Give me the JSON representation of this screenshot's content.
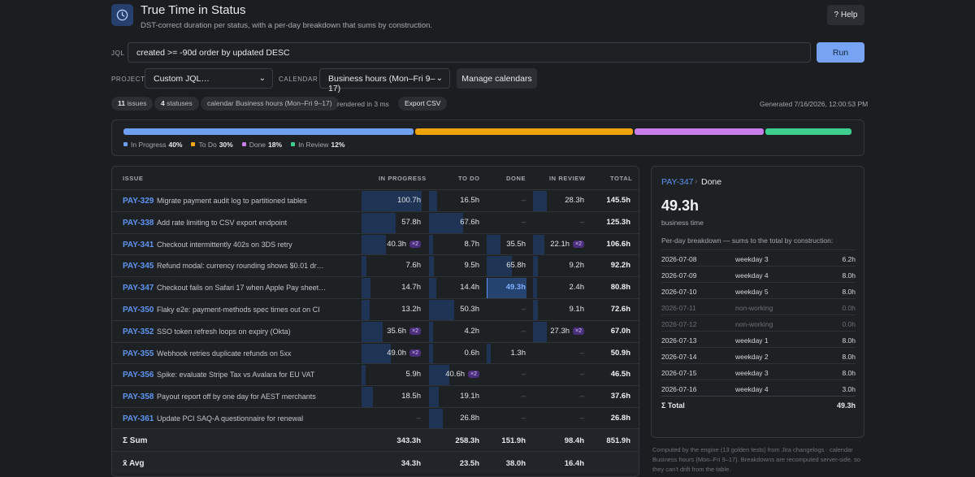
{
  "header": {
    "title": "True Time in Status",
    "subtitle": "DST-correct duration per status, with a per-day breakdown that sums by construction.",
    "help_label": "? Help"
  },
  "query": {
    "jql_label": "JQL",
    "jql_value": "created >= -90d order by updated DESC",
    "run_label": "Run"
  },
  "filters": {
    "project_label": "PROJECT",
    "project_value": "Custom JQL…",
    "calendar_label": "CALENDAR",
    "calendar_value": "Business hours (Mon–Fri 9–17)",
    "manage_label": "Manage calendars"
  },
  "summary_bar": {
    "issues_count": "11",
    "issues_label": "issues",
    "statuses_count": "4",
    "statuses_label": "statuses",
    "calendar_chip": "calendar Business hours (Mon–Fri 9–17)",
    "rendered": "rendered in 3 ms",
    "export_label": "Export CSV",
    "generated": "Generated 7/16/2026, 12:00:53 PM"
  },
  "distribution": [
    {
      "name": "In Progress",
      "pct_label": "40%",
      "pct": 40,
      "color": "#6e9ff0"
    },
    {
      "name": "To Do",
      "pct_label": "30%",
      "pct": 30,
      "color": "#f0a30a"
    },
    {
      "name": "Done",
      "pct_label": "18%",
      "pct": 18,
      "color": "#c77ee8"
    },
    {
      "name": "In Review",
      "pct_label": "12%",
      "pct": 12,
      "color": "#3ecf8e"
    }
  ],
  "table": {
    "headers": {
      "issue": "ISSUE",
      "in_progress": "IN PROGRESS",
      "to_do": "TO DO",
      "done": "DONE",
      "in_review": "IN REVIEW",
      "total": "TOTAL"
    },
    "max_value": 100.7,
    "rows": [
      {
        "key": "PAY-329",
        "summary": "Migrate payment audit log to partitioned tables",
        "inprog": "100.7h",
        "inprog_v": 100.7,
        "todo": "16.5h",
        "todo_v": 16.5,
        "done": "–",
        "done_v": 0,
        "review": "28.3h",
        "review_v": 28.3,
        "total": "145.5h"
      },
      {
        "key": "PAY-338",
        "summary": "Add rate limiting to CSV export endpoint",
        "inprog": "57.8h",
        "inprog_v": 57.8,
        "todo": "67.6h",
        "todo_v": 67.6,
        "done": "–",
        "done_v": 0,
        "review": "–",
        "review_v": 0,
        "total": "125.3h"
      },
      {
        "key": "PAY-341",
        "summary": "Checkout intermittently 402s on 3DS retry",
        "inprog": "40.3h",
        "inprog_v": 40.3,
        "inprog_x2": "×2",
        "todo": "8.7h",
        "todo_v": 8.7,
        "done": "35.5h",
        "done_v": 35.5,
        "review": "22.1h",
        "review_v": 22.1,
        "review_x2": "×2",
        "total": "106.6h"
      },
      {
        "key": "PAY-345",
        "summary": "Refund modal: currency rounding shows $0.01 dr…",
        "inprog": "7.6h",
        "inprog_v": 7.6,
        "todo": "9.5h",
        "todo_v": 9.5,
        "done": "65.8h",
        "done_v": 65.8,
        "review": "9.2h",
        "review_v": 9.2,
        "total": "92.2h"
      },
      {
        "key": "PAY-347",
        "summary": "Checkout fails on Safari 17 when Apple Pay sheet…",
        "inprog": "14.7h",
        "inprog_v": 14.7,
        "todo": "14.4h",
        "todo_v": 14.4,
        "done": "49.3h",
        "done_v": 49.3,
        "done_selected": true,
        "review": "2.4h",
        "review_v": 2.4,
        "total": "80.8h"
      },
      {
        "key": "PAY-350",
        "summary": "Flaky e2e: payment-methods spec times out on CI",
        "inprog": "13.2h",
        "inprog_v": 13.2,
        "todo": "50.3h",
        "todo_v": 50.3,
        "done": "–",
        "done_v": 0,
        "review": "9.1h",
        "review_v": 9.1,
        "total": "72.6h"
      },
      {
        "key": "PAY-352",
        "summary": "SSO token refresh loops on expiry (Okta)",
        "inprog": "35.6h",
        "inprog_v": 35.6,
        "inprog_x2": "×2",
        "todo": "4.2h",
        "todo_v": 4.2,
        "done": "–",
        "done_v": 0,
        "review": "27.3h",
        "review_v": 27.3,
        "review_x2": "×2",
        "total": "67.0h"
      },
      {
        "key": "PAY-355",
        "summary": "Webhook retries duplicate refunds on 5xx",
        "inprog": "49.0h",
        "inprog_v": 49.0,
        "inprog_x2": "×2",
        "todo": "0.6h",
        "todo_v": 0.6,
        "done": "1.3h",
        "done_v": 1.3,
        "review": "–",
        "review_v": 0,
        "total": "50.9h"
      },
      {
        "key": "PAY-356",
        "summary": "Spike: evaluate Stripe Tax vs Avalara for EU VAT",
        "inprog": "5.9h",
        "inprog_v": 5.9,
        "todo": "40.6h",
        "todo_v": 40.6,
        "todo_x2": "×2",
        "done": "–",
        "done_v": 0,
        "review": "–",
        "review_v": 0,
        "total": "46.5h"
      },
      {
        "key": "PAY-358",
        "summary": "Payout report off by one day for AEST merchants",
        "inprog": "18.5h",
        "inprog_v": 18.5,
        "todo": "19.1h",
        "todo_v": 19.1,
        "done": "–",
        "done_v": 0,
        "review": "–",
        "review_v": 0,
        "total": "37.6h"
      },
      {
        "key": "PAY-361",
        "summary": "Update PCI SAQ-A questionnaire for renewal",
        "inprog": "–",
        "inprog_v": 0,
        "todo": "26.8h",
        "todo_v": 26.8,
        "done": "–",
        "done_v": 0,
        "review": "–",
        "review_v": 0,
        "total": "26.8h"
      }
    ],
    "sum": {
      "label": "Σ Sum",
      "inprog": "343.3h",
      "todo": "258.3h",
      "done": "151.9h",
      "review": "98.4h",
      "total": "851.9h"
    },
    "avg": {
      "label": "x̄ Avg",
      "inprog": "34.3h",
      "todo": "23.5h",
      "done": "38.0h",
      "review": "16.4h"
    }
  },
  "detail": {
    "key": "PAY-347",
    "separator": "›",
    "status": "Done",
    "value": "49.3h",
    "unit": "business time",
    "description": "Per-day breakdown — sums to the total by construction:",
    "days": [
      {
        "date": "2026-07-08",
        "kind": "weekday 3",
        "hours": "6.2h",
        "working": true
      },
      {
        "date": "2026-07-09",
        "kind": "weekday 4",
        "hours": "8.0h",
        "working": true
      },
      {
        "date": "2026-07-10",
        "kind": "weekday 5",
        "hours": "8.0h",
        "working": true
      },
      {
        "date": "2026-07-11",
        "kind": "non-working",
        "hours": "0.0h",
        "working": false
      },
      {
        "date": "2026-07-12",
        "kind": "non-working",
        "hours": "0.0h",
        "working": false
      },
      {
        "date": "2026-07-13",
        "kind": "weekday 1",
        "hours": "8.0h",
        "working": true
      },
      {
        "date": "2026-07-14",
        "kind": "weekday 2",
        "hours": "8.0h",
        "working": true
      },
      {
        "date": "2026-07-15",
        "kind": "weekday 3",
        "hours": "8.0h",
        "working": true
      },
      {
        "date": "2026-07-16",
        "kind": "weekday 4",
        "hours": "3.0h",
        "working": true
      }
    ],
    "total_label": "Σ Total",
    "total_value": "49.3h"
  },
  "footnote": "Computed by the engine (13 golden tests) from Jira changelogs · calendar Business hours (Mon–Fri 9–17). Breakdowns are recomputed server-side, so they can't drift from the table.",
  "colors": {
    "accent": "#76a4f3",
    "key_link": "#5f94f0",
    "cell_fill": "#1f3354",
    "selected_fill": "#24436e",
    "badge": "#4b2f7a"
  }
}
